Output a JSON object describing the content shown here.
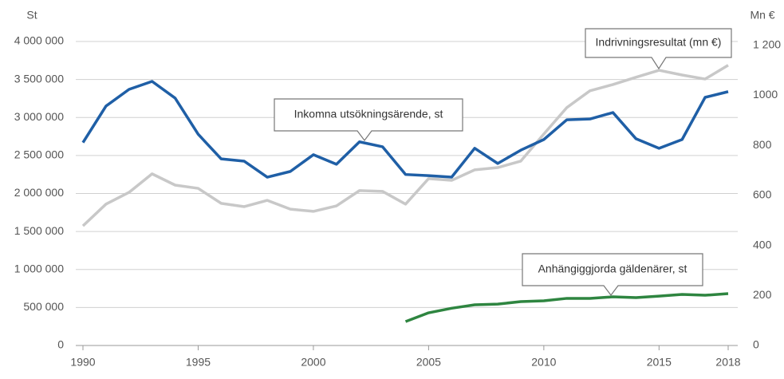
{
  "chart_data": {
    "type": "line",
    "y_label": "St",
    "y2_label": "Mn €",
    "x": [
      1990,
      1991,
      1992,
      1993,
      1994,
      1995,
      1996,
      1997,
      1998,
      1999,
      2000,
      2001,
      2002,
      2003,
      2004,
      2005,
      2006,
      2007,
      2008,
      2009,
      2010,
      2011,
      2012,
      2013,
      2014,
      2015,
      2016,
      2017,
      2018
    ],
    "xlim": [
      1990,
      2018
    ],
    "xticks": [
      1990,
      1995,
      2000,
      2005,
      2010,
      2015,
      2018
    ],
    "ylim": [
      0,
      4000000
    ],
    "yticks": [
      0,
      {
        "value": 500000,
        "label": "500 000"
      },
      {
        "value": 1000000,
        "label": "1 000 000"
      },
      {
        "value": 1500000,
        "label": "1 500 000"
      },
      {
        "value": 2000000,
        "label": "2 000 000"
      },
      {
        "value": 2500000,
        "label": "2 500 000"
      },
      {
        "value": 3000000,
        "label": "3 000 000"
      },
      {
        "value": 3500000,
        "label": "3 500 000"
      },
      {
        "value": 4000000,
        "label": "4 000 000"
      }
    ],
    "y2lim": [
      0,
      1215
    ],
    "y2ticks": [
      0,
      200,
      400,
      600,
      800,
      1000,
      {
        "value": 1200,
        "label": "1 200"
      }
    ],
    "grid": true,
    "series": [
      {
        "name": "Inkomna utsökningsärende, st",
        "color": "#1f5fa6",
        "values": [
          2670000,
          3150000,
          3370000,
          3475000,
          3255000,
          2780000,
          2455000,
          2425000,
          2215000,
          2290000,
          2510000,
          2385000,
          2680000,
          2615000,
          2250000,
          2235000,
          2215000,
          2595000,
          2395000,
          2570000,
          2710000,
          2970000,
          2980000,
          3065000,
          2720000,
          2595000,
          2710000,
          3265000,
          3340000
        ]
      },
      {
        "name": "Indrivningsresultat (mn €)",
        "color": "#c8c8c8",
        "axis": "y2",
        "values": [
          478,
          565,
          612,
          686,
          641,
          628,
          568,
          555,
          580,
          545,
          536,
          558,
          619,
          616,
          565,
          667,
          660,
          702,
          711,
          737,
          845,
          951,
          1018,
          1043,
          1072,
          1100,
          1081,
          1065,
          1120
        ]
      },
      {
        "name": "Anhängiggjorda gäldenärer, st",
        "color": "#2e8540",
        "values": [
          null,
          null,
          null,
          null,
          null,
          null,
          null,
          null,
          null,
          null,
          null,
          null,
          null,
          null,
          315000,
          430000,
          490000,
          535000,
          545000,
          577000,
          588000,
          620000,
          620000,
          640000,
          630000,
          650000,
          672000,
          661000,
          682000
        ]
      }
    ]
  }
}
